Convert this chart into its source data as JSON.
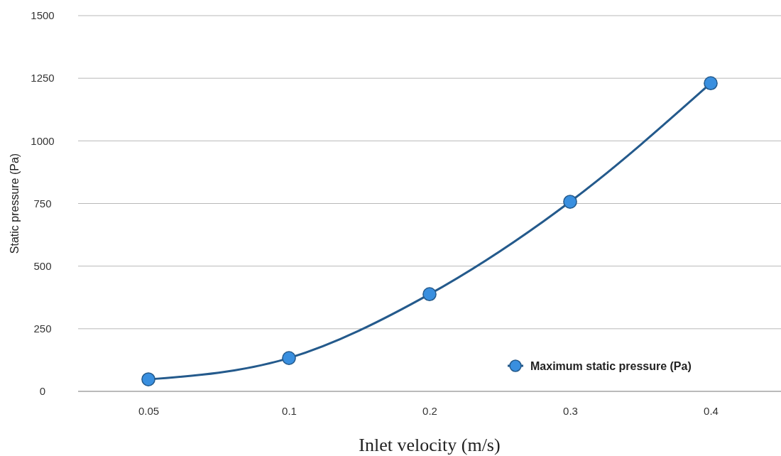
{
  "chart_data": {
    "type": "line",
    "xlabel": "Inlet velocity (m/s)",
    "ylabel": "Static pressure (Pa)",
    "categories": [
      "0.05",
      "0.1",
      "0.2",
      "0.3",
      "0.4"
    ],
    "series": [
      {
        "name": "Maximum static pressure (Pa)",
        "color": "#245a8c",
        "values": [
          48,
          133,
          388,
          757,
          1230
        ]
      }
    ],
    "ylim": [
      0,
      1500
    ],
    "yticks": [
      0,
      250,
      500,
      750,
      1000,
      1250,
      1500
    ],
    "grid": "y",
    "legend": "bottom right",
    "marker": "circle",
    "line_style": "solid"
  }
}
